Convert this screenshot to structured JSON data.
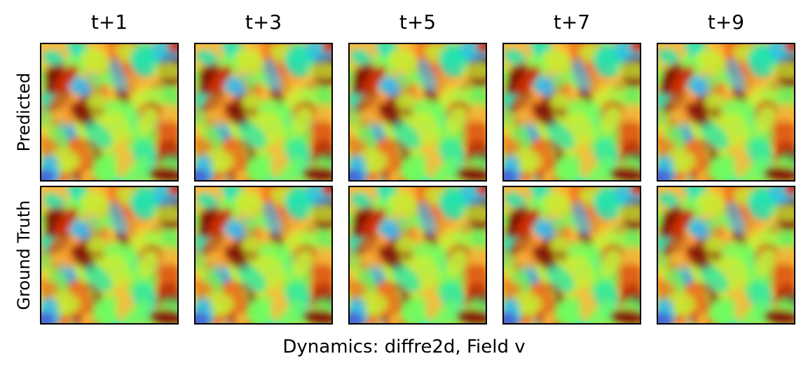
{
  "figure": {
    "columns": [
      "t+1",
      "t+3",
      "t+5",
      "t+7",
      "t+9"
    ],
    "rows": [
      "Predicted",
      "Ground Truth"
    ],
    "caption": "Dynamics: diffre2d, Field v",
    "colormap": [
      "#30123b",
      "#4669d6",
      "#2fb5ff",
      "#1ae4b6",
      "#72fe5e",
      "#c7ef34",
      "#faba39",
      "#f66b19",
      "#cb2a04",
      "#7a0403"
    ]
  }
}
